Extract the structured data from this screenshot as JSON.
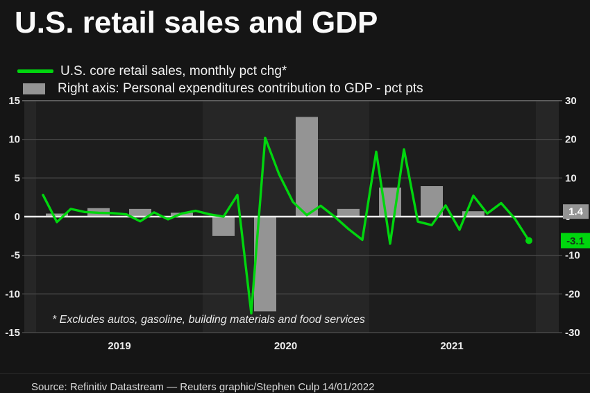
{
  "title": "U.S. retail sales and GDP",
  "legend": {
    "line_label": "U.S. core retail sales, monthly pct chg*",
    "bar_label": "Right axis: Personal expenditures contribution to GDP - pct pts"
  },
  "footnote": "* Excludes autos, gasoline, building materials and food services",
  "source": "Source: Refinitiv Datastream — Reuters graphic/Stephen Culp 14/01/2022",
  "annotations": {
    "last_bar_value_label": "1.4",
    "last_line_value_label": "-3.1"
  },
  "colors": {
    "line": "#00d60e",
    "bar": "#949494",
    "grid": "#484848",
    "grid_top": "#5c5c5c",
    "zero_line": "#ededed",
    "band_dark": "#1d1d1d",
    "band_light": "#262626",
    "tick_text": "#ededed",
    "gray_box_bg": "#949494",
    "gray_box_text": "#ffffff",
    "green_box_bg": "#00d60e",
    "green_box_text": "#17301a"
  },
  "chart_data": {
    "type": "combo",
    "title": "U.S. retail sales and GDP",
    "grid": true,
    "legend_position": "top-left",
    "x_axis": {
      "year_labels": [
        "2019",
        "2020",
        "2021"
      ],
      "range": [
        "2019-01",
        "2021-12"
      ]
    },
    "left_axis": {
      "ticks": [
        15,
        10,
        5,
        0,
        -5,
        -10,
        -15
      ],
      "range": [
        -15,
        15
      ],
      "label": "U.S. core retail sales, monthly pct chg*"
    },
    "right_axis": {
      "ticks": [
        30,
        20,
        10,
        0,
        -10,
        -20,
        -30
      ],
      "range": [
        -30,
        30
      ],
      "label": "Personal expenditures contribution to GDP - pct pts"
    },
    "series": [
      {
        "name": "U.S. core retail sales, monthly pct chg*",
        "type": "line",
        "axis": "left",
        "x_start": "2019-01",
        "x_step_months": 1,
        "values": [
          2.8,
          -0.7,
          1.0,
          0.6,
          0.5,
          0.45,
          0.3,
          -0.6,
          0.55,
          -0.35,
          0.4,
          0.75,
          0.3,
          0.0,
          2.8,
          -12.5,
          10.2,
          5.5,
          1.9,
          0.2,
          1.4,
          0.0,
          -1.6,
          -3.0,
          8.4,
          -3.5,
          8.7,
          -0.65,
          -1.1,
          1.45,
          -1.7,
          2.7,
          0.4,
          1.75,
          -0.3,
          -3.1
        ],
        "last_value_label": "-3.1"
      },
      {
        "name": "Personal expenditures contribution to GDP - pct pts",
        "type": "bar",
        "axis": "right",
        "categories": [
          "2019 Q1",
          "2019 Q2",
          "2019 Q3",
          "2019 Q4",
          "2020 Q1",
          "2020 Q2",
          "2020 Q3",
          "2020 Q4",
          "2021 Q1",
          "2021 Q2",
          "2021 Q3"
        ],
        "values": [
          0.8,
          2.2,
          2.0,
          1.0,
          -5.0,
          -24.5,
          25.8,
          2.0,
          7.5,
          7.9,
          1.4
        ],
        "last_value_label": "1.4"
      }
    ]
  }
}
